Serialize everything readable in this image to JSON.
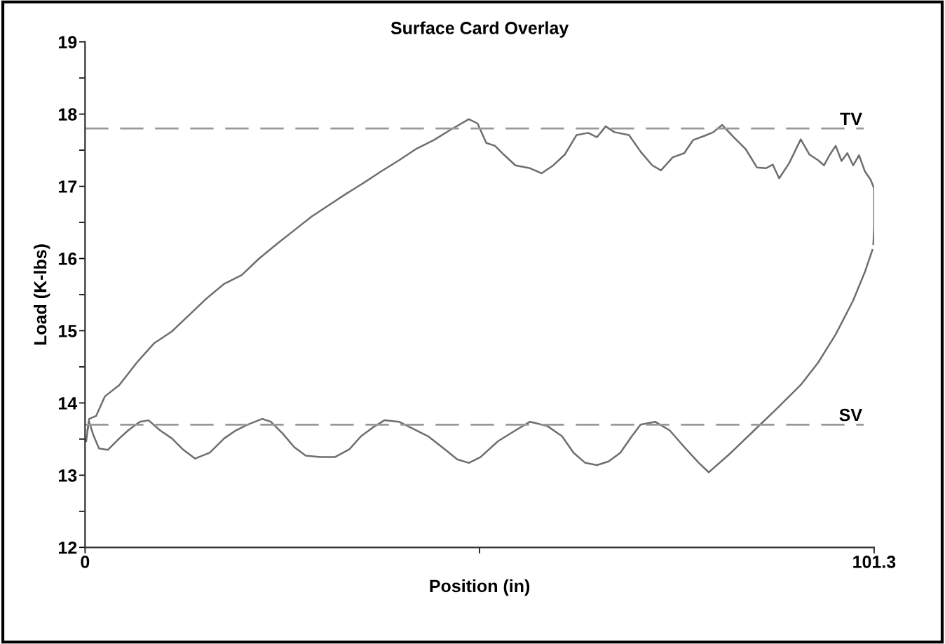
{
  "chart_data": {
    "type": "line",
    "title": "Surface Card Overlay",
    "xlabel": "Position (in)",
    "ylabel": "Load (K-lbs)",
    "xlim": [
      0,
      101.3
    ],
    "ylim": [
      12,
      19
    ],
    "xticks": [
      0,
      {
        "value": 50.65,
        "label": null
      },
      101.3
    ],
    "yticks": [
      12,
      {
        "value": 12.5,
        "label": null
      },
      13,
      {
        "value": 13.5,
        "label": null
      },
      14,
      {
        "value": 14.5,
        "label": null
      },
      15,
      {
        "value": 15.5,
        "label": null
      },
      16,
      {
        "value": 16.5,
        "label": null
      },
      17,
      {
        "value": 17.5,
        "label": null
      },
      18,
      {
        "value": 18.5,
        "label": null
      },
      19
    ],
    "grid": false,
    "legend": false,
    "marker": "none",
    "line_style": "solid",
    "ref_lines": [
      {
        "axis": "y",
        "value": 17.8,
        "label": "TV",
        "color": "#999999",
        "line_style": "dashed"
      },
      {
        "axis": "y",
        "value": 13.7,
        "label": "SV",
        "color": "#999999",
        "line_style": "dashed"
      }
    ],
    "series": [
      {
        "color": "#6e6e6e",
        "x": [
          0.15,
          0.52,
          1.42,
          2.54,
          4.41,
          6.65,
          8.9,
          11.14,
          13.38,
          15.63,
          17.87,
          20.11,
          22.35,
          24.6,
          26.84,
          29.08,
          31.33,
          33.57,
          35.81,
          38.05,
          40.3,
          42.54,
          44.78,
          47.03,
          49.27,
          50.39,
          51.51,
          52.63,
          53.75,
          55.25,
          57.12,
          58.61,
          60.11,
          61.6,
          63.1,
          64.59,
          65.72,
          66.84,
          67.96,
          69.83,
          71.32,
          72.82,
          73.94,
          75.43,
          76.93,
          78.05,
          79.55,
          80.67,
          81.79,
          83.28,
          84.78,
          86.27,
          87.4,
          88.29,
          89.11,
          90.39,
          91.88,
          93.0,
          94.12,
          94.87,
          95.62,
          96.37,
          97.12,
          97.86,
          98.61,
          99.36,
          100.1,
          100.85,
          101.3,
          101.3,
          101.2
        ],
        "values": [
          13.47,
          13.78,
          13.82,
          14.09,
          14.25,
          14.56,
          14.83,
          14.99,
          15.22,
          15.45,
          15.65,
          15.77,
          16.0,
          16.2,
          16.39,
          16.58,
          16.74,
          16.9,
          17.05,
          17.21,
          17.36,
          17.52,
          17.64,
          17.79,
          17.93,
          17.87,
          17.6,
          17.56,
          17.44,
          17.29,
          17.25,
          17.18,
          17.29,
          17.44,
          17.71,
          17.74,
          17.68,
          17.83,
          17.75,
          17.71,
          17.48,
          17.29,
          17.22,
          17.4,
          17.46,
          17.64,
          17.7,
          17.75,
          17.85,
          17.68,
          17.52,
          17.26,
          17.25,
          17.3,
          17.11,
          17.32,
          17.65,
          17.44,
          17.36,
          17.29,
          17.44,
          17.56,
          17.35,
          17.46,
          17.29,
          17.43,
          17.21,
          17.09,
          16.97,
          16.43,
          16.2
        ]
      },
      {
        "color": "#6e6e6e",
        "x": [
          0.3,
          0.52,
          1.05,
          1.79,
          2.92,
          4.41,
          5.53,
          7.03,
          8.15,
          9.64,
          11.14,
          12.63,
          14.13,
          16.0,
          17.87,
          19.36,
          20.86,
          22.73,
          23.85,
          25.34,
          26.84,
          28.33,
          30.2,
          32.07,
          33.94,
          35.44,
          36.93,
          38.43,
          40.3,
          41.79,
          44.03,
          46.28,
          47.77,
          49.27,
          50.76,
          53.01,
          55.25,
          57.12,
          59.36,
          61.23,
          62.72,
          64.22,
          65.72,
          67.21,
          68.71,
          70.2,
          71.32,
          73.19,
          75.06,
          76.93,
          78.8,
          80.07,
          82.91,
          85.9,
          88.89,
          91.88,
          94.12,
          96.37,
          98.61,
          100.1,
          101.08
        ],
        "values": [
          13.62,
          13.74,
          13.56,
          13.37,
          13.35,
          13.51,
          13.62,
          13.74,
          13.76,
          13.62,
          13.51,
          13.35,
          13.23,
          13.31,
          13.51,
          13.62,
          13.7,
          13.78,
          13.74,
          13.58,
          13.39,
          13.27,
          13.25,
          13.25,
          13.36,
          13.54,
          13.66,
          13.76,
          13.74,
          13.66,
          13.54,
          13.35,
          13.22,
          13.17,
          13.25,
          13.47,
          13.62,
          13.74,
          13.68,
          13.54,
          13.31,
          13.17,
          13.14,
          13.19,
          13.31,
          13.54,
          13.7,
          13.74,
          13.62,
          13.39,
          13.17,
          13.04,
          13.31,
          13.62,
          13.93,
          14.25,
          14.56,
          14.95,
          15.42,
          15.81,
          16.12
        ]
      }
    ]
  }
}
